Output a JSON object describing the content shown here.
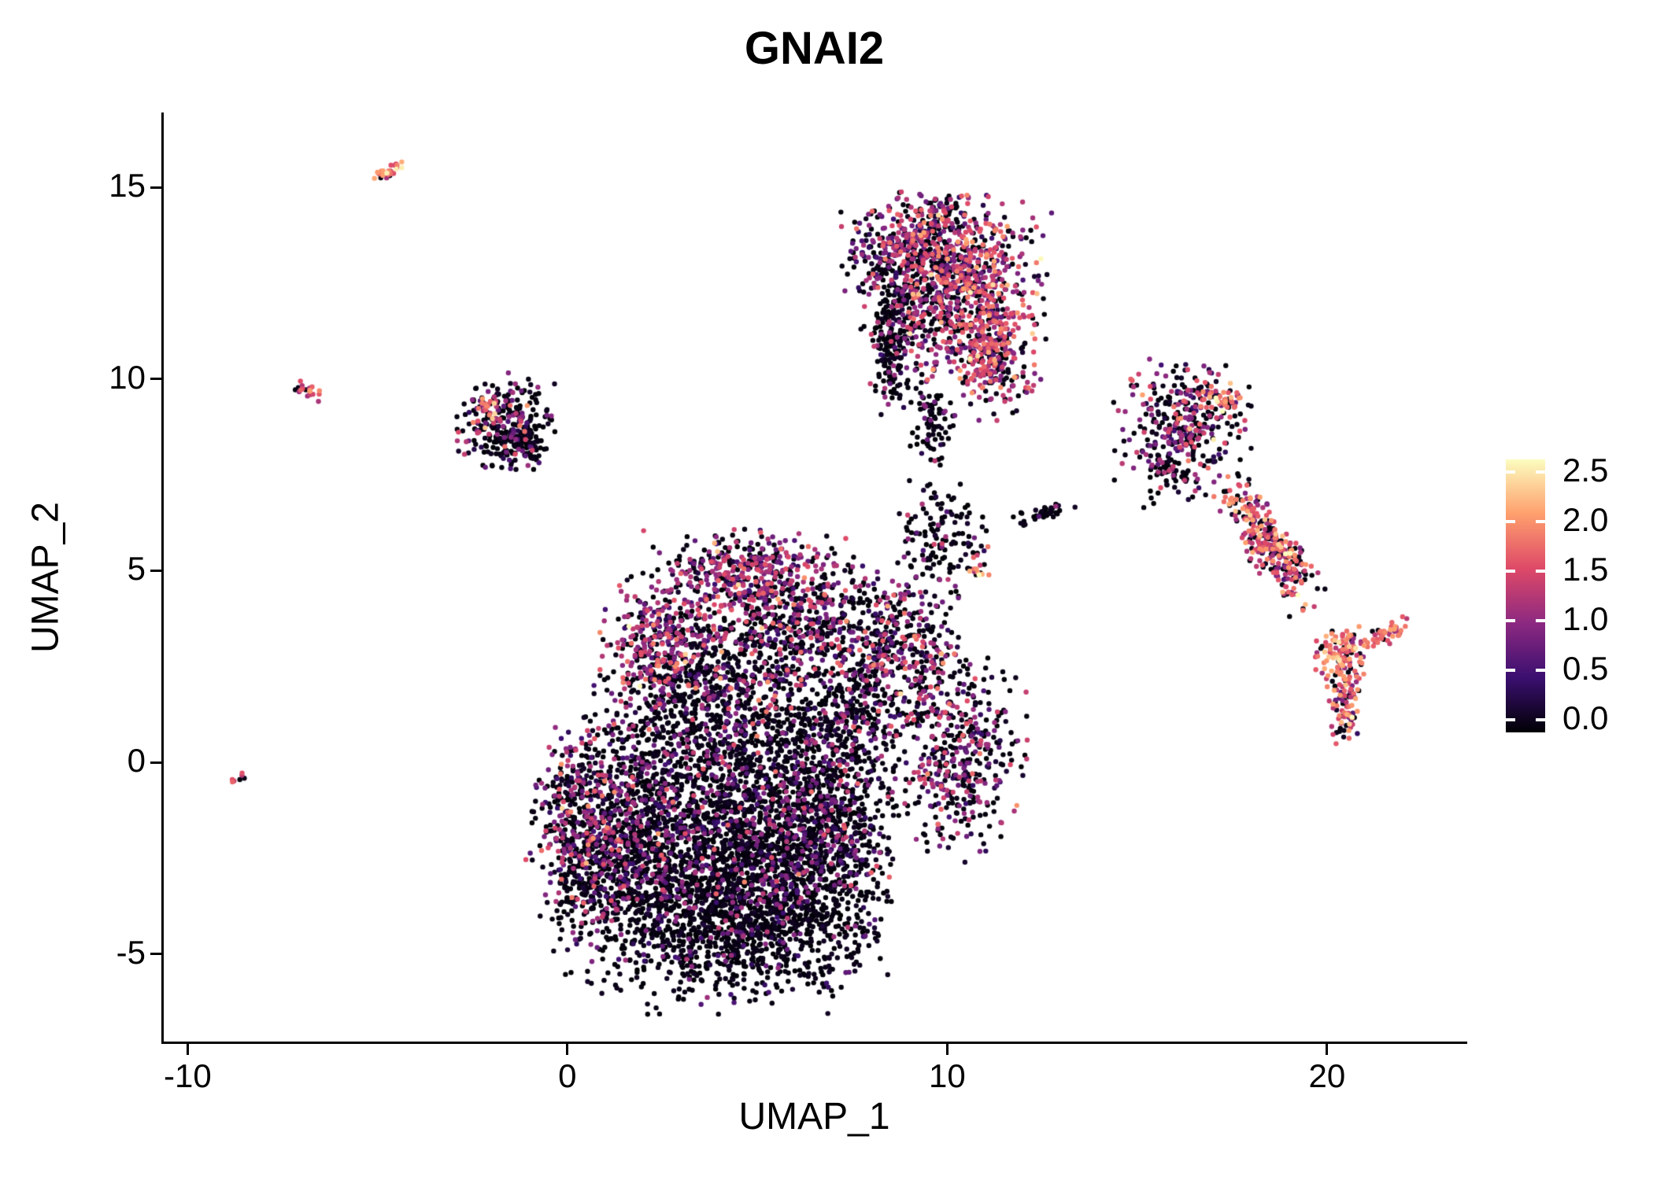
{
  "title": "GNAI2",
  "chart_data": {
    "type": "scatter",
    "title": "GNAI2",
    "xlabel": "UMAP_1",
    "ylabel": "UMAP_2",
    "xlim": [
      -10.65,
      23.65
    ],
    "ylim": [
      -7.3,
      16.95
    ],
    "grid": false,
    "x_ticks": [
      {
        "value": -10,
        "label": "-10"
      },
      {
        "value": 0,
        "label": "0"
      },
      {
        "value": 10,
        "label": "10"
      },
      {
        "value": 20,
        "label": "20"
      }
    ],
    "y_ticks": [
      {
        "value": 15,
        "label": "15"
      },
      {
        "value": 10,
        "label": "10"
      },
      {
        "value": 5,
        "label": "5"
      },
      {
        "value": 0,
        "label": "0"
      },
      {
        "value": -5,
        "label": "-5"
      }
    ],
    "legend": {
      "position": "right",
      "range": [
        0.0,
        2.5
      ],
      "ticks": [
        {
          "value": 2.5,
          "label": "2.5"
        },
        {
          "value": 2.0,
          "label": "2.0"
        },
        {
          "value": 1.5,
          "label": "1.5"
        },
        {
          "value": 1.0,
          "label": "1.0"
        },
        {
          "value": 0.5,
          "label": "0.5"
        },
        {
          "value": 0.0,
          "label": "0.0"
        }
      ]
    },
    "colors": {
      "background": "#FFFFFF",
      "axis": "#000000",
      "text": "#000000"
    },
    "colormap": {
      "name": "magma",
      "anchors": [
        {
          "t": 0.0,
          "color": "#000004"
        },
        {
          "t": 0.2,
          "color": "#3B0F70"
        },
        {
          "t": 0.4,
          "color": "#8C2981"
        },
        {
          "t": 0.6,
          "color": "#DE4968"
        },
        {
          "t": 0.8,
          "color": "#FE9F6D"
        },
        {
          "t": 1.0,
          "color": "#FCFDBF"
        }
      ]
    },
    "point_radius_px": 3.2,
    "clusters": [
      {
        "cx": 3.2,
        "cy": -3.6,
        "rx": 1.6,
        "ry": 1.1,
        "angle": 0,
        "n": 900,
        "p0": 0.86,
        "mean": 0.8,
        "sd": 0.35
      },
      {
        "cx": 5.6,
        "cy": -3.2,
        "rx": 1.3,
        "ry": 1.2,
        "angle": 0,
        "n": 800,
        "p0": 0.88,
        "mean": 0.8,
        "sd": 0.35
      },
      {
        "cx": 4.6,
        "cy": -1.2,
        "rx": 1.8,
        "ry": 1.1,
        "angle": 0,
        "n": 900,
        "p0": 0.8,
        "mean": 0.8,
        "sd": 0.4
      },
      {
        "cx": 2.1,
        "cy": -1.4,
        "rx": 1.1,
        "ry": 1.2,
        "angle": 0,
        "n": 600,
        "p0": 0.72,
        "mean": 0.85,
        "sd": 0.4
      },
      {
        "cx": 0.4,
        "cy": -1.5,
        "rx": 0.7,
        "ry": 1.1,
        "angle": 0,
        "n": 380,
        "p0": 0.55,
        "mean": 1.0,
        "sd": 0.45
      },
      {
        "cx": 6.9,
        "cy": -1.3,
        "rx": 0.8,
        "ry": 1.4,
        "angle": 0,
        "n": 450,
        "p0": 0.68,
        "mean": 0.9,
        "sd": 0.4
      },
      {
        "cx": 4.6,
        "cy": 0.9,
        "rx": 1.8,
        "ry": 0.8,
        "angle": 0,
        "n": 650,
        "p0": 0.8,
        "mean": 0.85,
        "sd": 0.4
      },
      {
        "cx": 0.8,
        "cy": -3.0,
        "rx": 0.7,
        "ry": 0.8,
        "angle": 0,
        "n": 200,
        "p0": 0.75,
        "mean": 0.9,
        "sd": 0.4
      },
      {
        "cx": 4.5,
        "cy": -4.8,
        "rx": 1.8,
        "ry": 0.8,
        "angle": 0,
        "n": 300,
        "p0": 0.92,
        "mean": 0.6,
        "sd": 0.3
      },
      {
        "cx": 2.5,
        "cy": 3.1,
        "rx": 0.75,
        "ry": 0.75,
        "angle": 0,
        "n": 320,
        "p0": 0.32,
        "mean": 1.1,
        "sd": 0.4
      },
      {
        "cx": 4.6,
        "cy": 4.9,
        "rx": 1.3,
        "ry": 0.55,
        "angle": 0,
        "n": 420,
        "p0": 0.38,
        "mean": 1.05,
        "sd": 0.4
      },
      {
        "cx": 6.4,
        "cy": 3.5,
        "rx": 1.0,
        "ry": 0.8,
        "angle": 0,
        "n": 300,
        "p0": 0.55,
        "mean": 0.95,
        "sd": 0.4
      },
      {
        "cx": 4.8,
        "cy": 3.2,
        "rx": 1.2,
        "ry": 0.8,
        "angle": 0,
        "n": 260,
        "p0": 0.75,
        "mean": 0.8,
        "sd": 0.35
      },
      {
        "cx": 3.4,
        "cy": 2.1,
        "rx": 1.2,
        "ry": 0.6,
        "angle": 0,
        "n": 220,
        "p0": 0.7,
        "mean": 0.9,
        "sd": 0.4
      },
      {
        "cx": 8.7,
        "cy": 2.9,
        "rx": 0.85,
        "ry": 1.0,
        "angle": 0,
        "n": 420,
        "p0": 0.6,
        "mean": 1.0,
        "sd": 0.45
      },
      {
        "cx": 10.3,
        "cy": 0.1,
        "rx": 0.8,
        "ry": 1.2,
        "angle": 0,
        "n": 420,
        "p0": 0.62,
        "mean": 0.95,
        "sd": 0.45
      },
      {
        "cx": 7.8,
        "cy": 1.4,
        "rx": 0.5,
        "ry": 0.9,
        "angle": 0,
        "n": 140,
        "p0": 0.82,
        "mean": 0.8,
        "sd": 0.3
      },
      {
        "cx": 9.3,
        "cy": 13.4,
        "rx": 0.95,
        "ry": 0.65,
        "angle": 0,
        "n": 420,
        "p0": 0.45,
        "mean": 1.05,
        "sd": 0.45
      },
      {
        "cx": 10.8,
        "cy": 12.3,
        "rx": 0.85,
        "ry": 1.1,
        "angle": 0,
        "n": 500,
        "p0": 0.3,
        "mean": 1.3,
        "sd": 0.45
      },
      {
        "cx": 9.4,
        "cy": 11.8,
        "rx": 0.8,
        "ry": 0.9,
        "angle": 0,
        "n": 350,
        "p0": 0.52,
        "mean": 1.0,
        "sd": 0.45
      },
      {
        "cx": 11.2,
        "cy": 10.4,
        "rx": 0.45,
        "ry": 0.65,
        "angle": 0,
        "n": 200,
        "p0": 0.3,
        "mean": 1.35,
        "sd": 0.4
      },
      {
        "cx": 8.5,
        "cy": 10.9,
        "rx": 0.22,
        "ry": 0.85,
        "angle": 0,
        "n": 140,
        "p0": 0.9,
        "mean": 0.7,
        "sd": 0.3
      },
      {
        "cx": 9.6,
        "cy": 8.9,
        "rx": 0.28,
        "ry": 0.5,
        "angle": 0,
        "n": 80,
        "p0": 0.82,
        "mean": 0.8,
        "sd": 0.3
      },
      {
        "cx": 9.9,
        "cy": 14.3,
        "rx": 0.3,
        "ry": 0.3,
        "angle": 0,
        "n": 60,
        "p0": 0.5,
        "mean": 1.1,
        "sd": 0.4
      },
      {
        "cx": 9.8,
        "cy": 5.9,
        "rx": 0.55,
        "ry": 0.65,
        "angle": 0,
        "n": 130,
        "p0": 0.85,
        "mean": 0.9,
        "sd": 0.4
      },
      {
        "cx": 10.9,
        "cy": 5.2,
        "rx": 0.2,
        "ry": 0.25,
        "angle": 0,
        "n": 15,
        "p0": 0.1,
        "mean": 1.8,
        "sd": 0.3
      },
      {
        "cx": 12.6,
        "cy": 6.5,
        "rx": 0.4,
        "ry": 0.1,
        "angle": 15,
        "n": 40,
        "p0": 0.88,
        "mean": 0.9,
        "sd": 0.3
      },
      {
        "cx": 16.2,
        "cy": 8.8,
        "rx": 0.8,
        "ry": 0.8,
        "angle": 0,
        "n": 340,
        "p0": 0.5,
        "mean": 1.05,
        "sd": 0.45
      },
      {
        "cx": 17.3,
        "cy": 9.4,
        "rx": 0.3,
        "ry": 0.25,
        "angle": -30,
        "n": 45,
        "p0": 0.15,
        "mean": 1.8,
        "sd": 0.35
      },
      {
        "cx": 15.8,
        "cy": 7.5,
        "rx": 0.35,
        "ry": 0.4,
        "angle": 0,
        "n": 40,
        "p0": 0.85,
        "mean": 0.8,
        "sd": 0.3
      },
      {
        "cx": 18.5,
        "cy": 5.7,
        "rx": 0.95,
        "ry": 0.3,
        "angle": -55,
        "n": 300,
        "p0": 0.28,
        "mean": 1.45,
        "sd": 0.4
      },
      {
        "cx": 20.4,
        "cy": 2.6,
        "rx": 0.35,
        "ry": 0.45,
        "angle": 0,
        "n": 130,
        "p0": 0.18,
        "mean": 1.7,
        "sd": 0.4
      },
      {
        "cx": 20.5,
        "cy": 1.3,
        "rx": 0.18,
        "ry": 0.45,
        "angle": 0,
        "n": 60,
        "p0": 0.25,
        "mean": 1.5,
        "sd": 0.4
      },
      {
        "cx": 21.5,
        "cy": 3.3,
        "rx": 0.4,
        "ry": 0.12,
        "angle": 30,
        "n": 45,
        "p0": 0.1,
        "mean": 1.5,
        "sd": 0.3
      },
      {
        "cx": -4.7,
        "cy": 15.4,
        "rx": 0.25,
        "ry": 0.09,
        "angle": 35,
        "n": 25,
        "p0": 0.12,
        "mean": 1.9,
        "sd": 0.3
      },
      {
        "cx": -6.8,
        "cy": 9.7,
        "rx": 0.22,
        "ry": 0.08,
        "angle": -25,
        "n": 20,
        "p0": 0.15,
        "mean": 1.5,
        "sd": 0.3
      },
      {
        "cx": -1.6,
        "cy": 8.9,
        "rx": 0.6,
        "ry": 0.55,
        "angle": 0,
        "n": 240,
        "p0": 0.7,
        "mean": 0.95,
        "sd": 0.45
      },
      {
        "cx": -2.1,
        "cy": 9.3,
        "rx": 0.18,
        "ry": 0.15,
        "angle": 0,
        "n": 22,
        "p0": 0.1,
        "mean": 1.8,
        "sd": 0.3
      },
      {
        "cx": -1.2,
        "cy": 8.3,
        "rx": 0.35,
        "ry": 0.3,
        "angle": 0,
        "n": 90,
        "p0": 0.95,
        "mean": 0.6,
        "sd": 0.2
      },
      {
        "cx": -8.7,
        "cy": -0.4,
        "rx": 0.12,
        "ry": 0.08,
        "angle": 0,
        "n": 7,
        "p0": 0.1,
        "mean": 1.5,
        "sd": 0.25
      }
    ]
  }
}
